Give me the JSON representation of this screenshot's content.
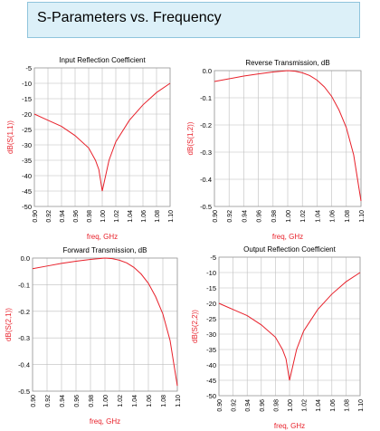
{
  "page": {
    "title": "S-Parameters vs. Frequency"
  },
  "colors": {
    "title_bg": "#dcf0f8",
    "title_border": "#8fc4dc",
    "trace": "#e8202a",
    "axis_label": "#e8202a",
    "tick_text": "#000000",
    "grid": "#bdbdbd"
  },
  "chart_data": [
    {
      "type": "line",
      "title": "Input Reflection Coefficient",
      "xlabel": "freq, GHz",
      "ylabel": "dB(S(1,1))",
      "xlim": [
        0.9,
        1.1
      ],
      "ylim": [
        -50,
        -5
      ],
      "xticks": [
        "0.90",
        "0.92",
        "0.94",
        "0.96",
        "0.98",
        "1.00",
        "1.02",
        "1.04",
        "1.06",
        "1.08",
        "1.10"
      ],
      "yticks": [
        "-5",
        "-10",
        "-15",
        "-20",
        "-25",
        "-30",
        "-35",
        "-40",
        "-45",
        "-50"
      ],
      "grid": true,
      "series": [
        {
          "x": [
            0.9,
            0.92,
            0.94,
            0.96,
            0.98,
            0.99,
            0.995,
            1.0,
            1.005,
            1.01,
            1.02,
            1.04,
            1.06,
            1.08,
            1.1
          ],
          "y": [
            -20,
            -22,
            -24,
            -27,
            -31,
            -35,
            -38,
            -45,
            -40,
            -35,
            -29,
            -22,
            -17,
            -13,
            -10
          ]
        }
      ]
    },
    {
      "type": "line",
      "title": "Reverse Transmission, dB",
      "xlabel": "freq, GHz",
      "ylabel": "dB(S(1,2))",
      "xlim": [
        0.9,
        1.1
      ],
      "ylim": [
        -0.5,
        0.0
      ],
      "xticks": [
        "0.90",
        "0.92",
        "0.94",
        "0.96",
        "0.98",
        "1.00",
        "1.02",
        "1.04",
        "1.06",
        "1.08",
        "1.10"
      ],
      "yticks": [
        "0.0",
        "-0.1",
        "-0.2",
        "-0.3",
        "-0.4",
        "-0.5"
      ],
      "grid": true,
      "series": [
        {
          "x": [
            0.9,
            0.92,
            0.94,
            0.96,
            0.98,
            1.0,
            1.01,
            1.02,
            1.03,
            1.04,
            1.05,
            1.06,
            1.07,
            1.08,
            1.09,
            1.1
          ],
          "y": [
            -0.04,
            -0.03,
            -0.02,
            -0.012,
            -0.005,
            0.0,
            -0.002,
            -0.008,
            -0.018,
            -0.035,
            -0.06,
            -0.095,
            -0.145,
            -0.21,
            -0.31,
            -0.48
          ]
        }
      ]
    },
    {
      "type": "line",
      "title": "Forward Transmission, dB",
      "xlabel": "freq, GHz",
      "ylabel": "dB(S(2,1))",
      "xlim": [
        0.9,
        1.1
      ],
      "ylim": [
        -0.5,
        0.0
      ],
      "xticks": [
        "0.90",
        "0.92",
        "0.94",
        "0.96",
        "0.98",
        "1.00",
        "1.02",
        "1.04",
        "1.06",
        "1.08",
        "1.10"
      ],
      "yticks": [
        "0.0",
        "-0.1",
        "-0.2",
        "-0.3",
        "-0.4",
        "-0.5"
      ],
      "grid": true,
      "series": [
        {
          "x": [
            0.9,
            0.92,
            0.94,
            0.96,
            0.98,
            1.0,
            1.01,
            1.02,
            1.03,
            1.04,
            1.05,
            1.06,
            1.07,
            1.08,
            1.09,
            1.1
          ],
          "y": [
            -0.04,
            -0.03,
            -0.02,
            -0.012,
            -0.005,
            0.0,
            -0.002,
            -0.008,
            -0.018,
            -0.035,
            -0.06,
            -0.095,
            -0.145,
            -0.21,
            -0.31,
            -0.48
          ]
        }
      ]
    },
    {
      "type": "line",
      "title": "Output Reflection Coefficient",
      "xlabel": "freq, GHz",
      "ylabel": "dB(S(2,2))",
      "xlim": [
        0.9,
        1.1
      ],
      "ylim": [
        -50,
        -5
      ],
      "xticks": [
        "0.90",
        "0.92",
        "0.94",
        "0.96",
        "0.98",
        "1.00",
        "1.02",
        "1.04",
        "1.06",
        "1.08",
        "1.10"
      ],
      "yticks": [
        "-5",
        "-10",
        "-15",
        "-20",
        "-25",
        "-30",
        "-35",
        "-40",
        "-45",
        "-50"
      ],
      "grid": true,
      "series": [
        {
          "x": [
            0.9,
            0.92,
            0.94,
            0.96,
            0.98,
            0.99,
            0.995,
            1.0,
            1.005,
            1.01,
            1.02,
            1.04,
            1.06,
            1.08,
            1.1
          ],
          "y": [
            -20,
            -22,
            -24,
            -27,
            -31,
            -35,
            -38,
            -45,
            -40,
            -35,
            -29,
            -22,
            -17,
            -13,
            -10
          ]
        }
      ]
    }
  ]
}
